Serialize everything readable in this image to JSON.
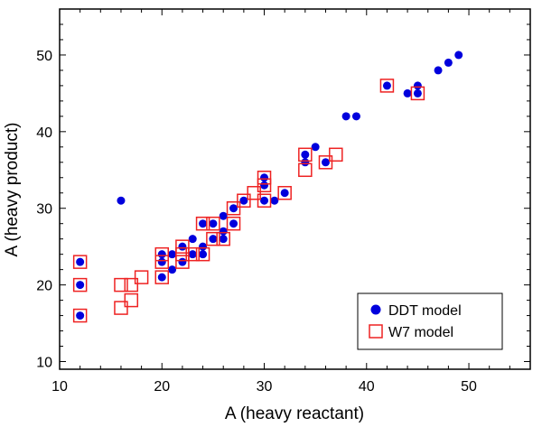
{
  "chart_data": {
    "type": "scatter",
    "xlabel": "A (heavy reactant)",
    "ylabel": "A (heavy product)",
    "xlim": [
      10,
      56
    ],
    "ylim": [
      9,
      56
    ],
    "x_ticks": [
      10,
      20,
      30,
      40,
      50
    ],
    "y_ticks": [
      10,
      20,
      30,
      40,
      50
    ],
    "x_minor_step": 2,
    "y_minor_step": 2,
    "grid": false,
    "legend_position": "bottom-right",
    "series": [
      {
        "name": "DDT model",
        "marker": "filled-circle",
        "color": "#0000dd",
        "points": [
          [
            12,
            16
          ],
          [
            12,
            20
          ],
          [
            12,
            23
          ],
          [
            16,
            31
          ],
          [
            20,
            21
          ],
          [
            20,
            23
          ],
          [
            20,
            24
          ],
          [
            21,
            22
          ],
          [
            21,
            24
          ],
          [
            22,
            23
          ],
          [
            22,
            25
          ],
          [
            23,
            24
          ],
          [
            23,
            26
          ],
          [
            24,
            24
          ],
          [
            24,
            25
          ],
          [
            24,
            28
          ],
          [
            25,
            26
          ],
          [
            25,
            28
          ],
          [
            26,
            26
          ],
          [
            26,
            27
          ],
          [
            26,
            29
          ],
          [
            27,
            28
          ],
          [
            27,
            30
          ],
          [
            28,
            31
          ],
          [
            30,
            31
          ],
          [
            30,
            33
          ],
          [
            30,
            34
          ],
          [
            31,
            31
          ],
          [
            32,
            32
          ],
          [
            34,
            36
          ],
          [
            34,
            37
          ],
          [
            35,
            38
          ],
          [
            36,
            36
          ],
          [
            38,
            42
          ],
          [
            39,
            42
          ],
          [
            42,
            46
          ],
          [
            44,
            45
          ],
          [
            45,
            45
          ],
          [
            45,
            46
          ],
          [
            47,
            48
          ],
          [
            48,
            49
          ],
          [
            49,
            50
          ]
        ]
      },
      {
        "name": "W7 model",
        "marker": "open-square",
        "color": "#ee2222",
        "points": [
          [
            12,
            16
          ],
          [
            12,
            20
          ],
          [
            12,
            23
          ],
          [
            16,
            17
          ],
          [
            16,
            20
          ],
          [
            17,
            18
          ],
          [
            17,
            20
          ],
          [
            18,
            21
          ],
          [
            20,
            21
          ],
          [
            20,
            23
          ],
          [
            20,
            24
          ],
          [
            22,
            23
          ],
          [
            22,
            24
          ],
          [
            22,
            25
          ],
          [
            23,
            24
          ],
          [
            24,
            24
          ],
          [
            24,
            28
          ],
          [
            25,
            26
          ],
          [
            25,
            28
          ],
          [
            26,
            26
          ],
          [
            27,
            28
          ],
          [
            27,
            30
          ],
          [
            28,
            31
          ],
          [
            29,
            32
          ],
          [
            30,
            31
          ],
          [
            30,
            33
          ],
          [
            30,
            34
          ],
          [
            32,
            32
          ],
          [
            34,
            35
          ],
          [
            34,
            37
          ],
          [
            36,
            36
          ],
          [
            37,
            37
          ],
          [
            42,
            46
          ],
          [
            45,
            45
          ]
        ]
      }
    ]
  }
}
